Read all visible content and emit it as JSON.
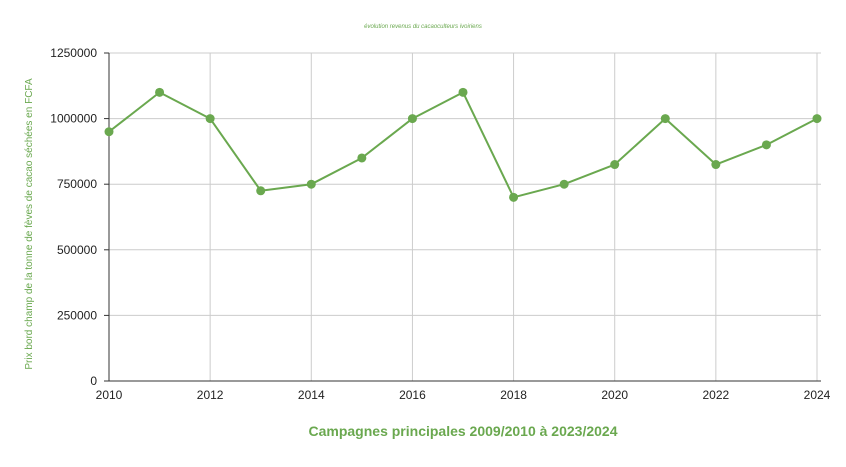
{
  "chart_data": {
    "type": "line",
    "title": "évolution revenus du cacaoculteurs ivoiriens",
    "xlabel": "Campagnes principales 2009/2010 à 2023/2024",
    "ylabel": "Prix bord champ de la tonne de fèves de cacao séchées en FCFA",
    "x": [
      2010,
      2011,
      2012,
      2013,
      2014,
      2015,
      2016,
      2017,
      2018,
      2019,
      2020,
      2021,
      2022,
      2023,
      2024
    ],
    "series": [
      {
        "values": [
          950000,
          1100000,
          1000000,
          725000,
          750000,
          850000,
          1000000,
          1100000,
          700000,
          750000,
          825000,
          1000000,
          825000,
          900000,
          1000000
        ]
      }
    ],
    "xlim": [
      2010,
      2024
    ],
    "ylim": [
      0,
      1250000
    ],
    "x_ticks": [
      "2010",
      "2012",
      "2014",
      "2016",
      "2018",
      "2020",
      "2022",
      "2024"
    ],
    "y_ticks": [
      "0",
      "250000",
      "500000",
      "750000",
      "1000000",
      "1250000"
    ],
    "grid": true,
    "legend": "none",
    "colors": {
      "series": "#6aa84f",
      "grid": "#cccccc",
      "axis": "#333333",
      "text": "#222222"
    }
  }
}
